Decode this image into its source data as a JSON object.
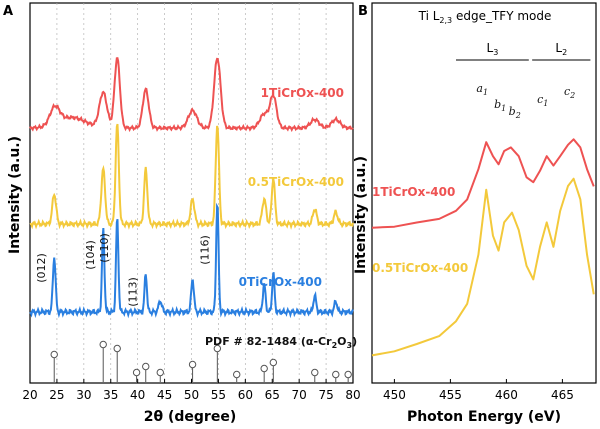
{
  "colors": {
    "red": "#ee5252",
    "yellow": "#f3c93b",
    "blue": "#2a7fe0"
  },
  "chart_data": [
    {
      "panel": "A",
      "type": "line",
      "xlabel": "2θ (degree)",
      "ylabel": "Intensity (a.u.)",
      "xlim": [
        20,
        80
      ],
      "xticks": [
        "20",
        "25",
        "30",
        "35",
        "40",
        "45",
        "50",
        "55",
        "60",
        "65",
        "70",
        "75",
        "80"
      ],
      "series": [
        {
          "name": "1TiCrOx-400",
          "color": "#ee5252",
          "peaks": [
            [
              24.6,
              0.25,
              0.9
            ],
            [
              27.8,
              0.15,
              2.5
            ],
            [
              33.6,
              0.5,
              0.7
            ],
            [
              36.2,
              1.0,
              0.5
            ],
            [
              41.5,
              0.55,
              0.55
            ],
            [
              50.2,
              0.25,
              0.8
            ],
            [
              54.8,
              1.0,
              0.6
            ],
            [
              63.5,
              0.2,
              0.8
            ],
            [
              65.2,
              0.45,
              0.6
            ],
            [
              72.9,
              0.12,
              0.8
            ],
            [
              76.8,
              0.12,
              0.8
            ]
          ]
        },
        {
          "name": "0.5TiCrOx-400",
          "color": "#f3c93b",
          "peaks": [
            [
              24.5,
              0.3,
              0.35
            ],
            [
              33.6,
              0.55,
              0.35
            ],
            [
              36.2,
              1.0,
              0.3
            ],
            [
              41.5,
              0.55,
              0.3
            ],
            [
              50.2,
              0.25,
              0.35
            ],
            [
              54.8,
              1.0,
              0.3
            ],
            [
              63.5,
              0.25,
              0.35
            ],
            [
              65.2,
              0.45,
              0.3
            ],
            [
              72.9,
              0.15,
              0.35
            ],
            [
              76.8,
              0.12,
              0.35
            ]
          ]
        },
        {
          "name": "0TiCrOx-400",
          "color": "#2a7fe0",
          "peaks": [
            [
              24.5,
              0.5,
              0.25
            ],
            [
              33.6,
              0.75,
              0.22
            ],
            [
              36.2,
              0.85,
              0.22
            ],
            [
              41.5,
              0.35,
              0.22
            ],
            [
              44.2,
              0.1,
              0.3
            ],
            [
              50.2,
              0.3,
              0.25
            ],
            [
              54.8,
              1.0,
              0.22
            ],
            [
              63.5,
              0.25,
              0.25
            ],
            [
              65.2,
              0.35,
              0.22
            ],
            [
              72.9,
              0.15,
              0.25
            ],
            [
              76.8,
              0.1,
              0.25
            ]
          ]
        }
      ],
      "peak_labels": [
        {
          "label": "(012)",
          "x": 24.5
        },
        {
          "label": "(104)",
          "x": 33.6
        },
        {
          "label": "(110)",
          "x": 36.2
        },
        {
          "label": "(113)",
          "x": 41.5
        },
        {
          "label": "(116)",
          "x": 54.8
        }
      ],
      "reference": {
        "label": "PDF # 82-1484 (α-Cr₂O₃)",
        "lines": [
          [
            24.5,
            0.6
          ],
          [
            33.6,
            0.85
          ],
          [
            36.2,
            0.75
          ],
          [
            39.8,
            0.15
          ],
          [
            41.5,
            0.3
          ],
          [
            44.2,
            0.15
          ],
          [
            50.2,
            0.35
          ],
          [
            54.8,
            0.75
          ],
          [
            58.4,
            0.1
          ],
          [
            63.5,
            0.25
          ],
          [
            65.2,
            0.4
          ],
          [
            72.9,
            0.15
          ],
          [
            76.8,
            0.1
          ],
          [
            79.1,
            0.1
          ]
        ]
      }
    },
    {
      "panel": "B",
      "type": "line",
      "title": "Ti L₂,₃ edge_TFY mode",
      "xlabel": "Photon Energy (eV)",
      "ylabel": "Intensity (a.u.)",
      "xlim": [
        448,
        468
      ],
      "xticks": [
        "450",
        "455",
        "460",
        "465"
      ],
      "bands": [
        {
          "label": "L₃",
          "x0": 455.5,
          "x1": 462.0
        },
        {
          "label": "L₂",
          "x0": 462.3,
          "x1": 467.5
        }
      ],
      "annotations": [
        {
          "main": "a",
          "sub": "1",
          "x": 458.2
        },
        {
          "main": "b",
          "sub": "1",
          "x": 459.8
        },
        {
          "main": "b",
          "sub": "2",
          "x": 461.1
        },
        {
          "main": "c",
          "sub": "1",
          "x": 463.6
        },
        {
          "main": "c",
          "sub": "2",
          "x": 466.0
        }
      ],
      "series": [
        {
          "name": "1TiCrOx-400",
          "color": "#ee5252",
          "points": [
            [
              448,
              0.05
            ],
            [
              450,
              0.07
            ],
            [
              452,
              0.09
            ],
            [
              454,
              0.13
            ],
            [
              455.5,
              0.18
            ],
            [
              456.5,
              0.28
            ],
            [
              457.5,
              0.5
            ],
            [
              458.2,
              0.72
            ],
            [
              458.8,
              0.6
            ],
            [
              459.3,
              0.55
            ],
            [
              459.8,
              0.64
            ],
            [
              460.4,
              0.68
            ],
            [
              461.1,
              0.6
            ],
            [
              461.8,
              0.45
            ],
            [
              462.4,
              0.4
            ],
            [
              463.0,
              0.5
            ],
            [
              463.6,
              0.6
            ],
            [
              464.2,
              0.54
            ],
            [
              464.8,
              0.6
            ],
            [
              465.5,
              0.7
            ],
            [
              466.0,
              0.73
            ],
            [
              466.6,
              0.68
            ],
            [
              467.2,
              0.5
            ],
            [
              467.8,
              0.38
            ]
          ]
        },
        {
          "name": "0.5TiCrOx-400",
          "color": "#f3c93b",
          "points": [
            [
              448,
              0.02
            ],
            [
              450,
              0.05
            ],
            [
              452,
              0.08
            ],
            [
              454,
              0.13
            ],
            [
              455.5,
              0.2
            ],
            [
              456.5,
              0.3
            ],
            [
              457.5,
              0.55
            ],
            [
              458.2,
              0.9
            ],
            [
              458.8,
              0.65
            ],
            [
              459.3,
              0.58
            ],
            [
              459.8,
              0.72
            ],
            [
              460.5,
              0.78
            ],
            [
              461.1,
              0.68
            ],
            [
              461.8,
              0.5
            ],
            [
              462.4,
              0.42
            ],
            [
              463.0,
              0.6
            ],
            [
              463.6,
              0.72
            ],
            [
              464.2,
              0.6
            ],
            [
              464.8,
              0.78
            ],
            [
              465.5,
              0.92
            ],
            [
              466.0,
              0.95
            ],
            [
              466.6,
              0.85
            ],
            [
              467.2,
              0.55
            ],
            [
              467.8,
              0.35
            ]
          ]
        }
      ]
    }
  ]
}
